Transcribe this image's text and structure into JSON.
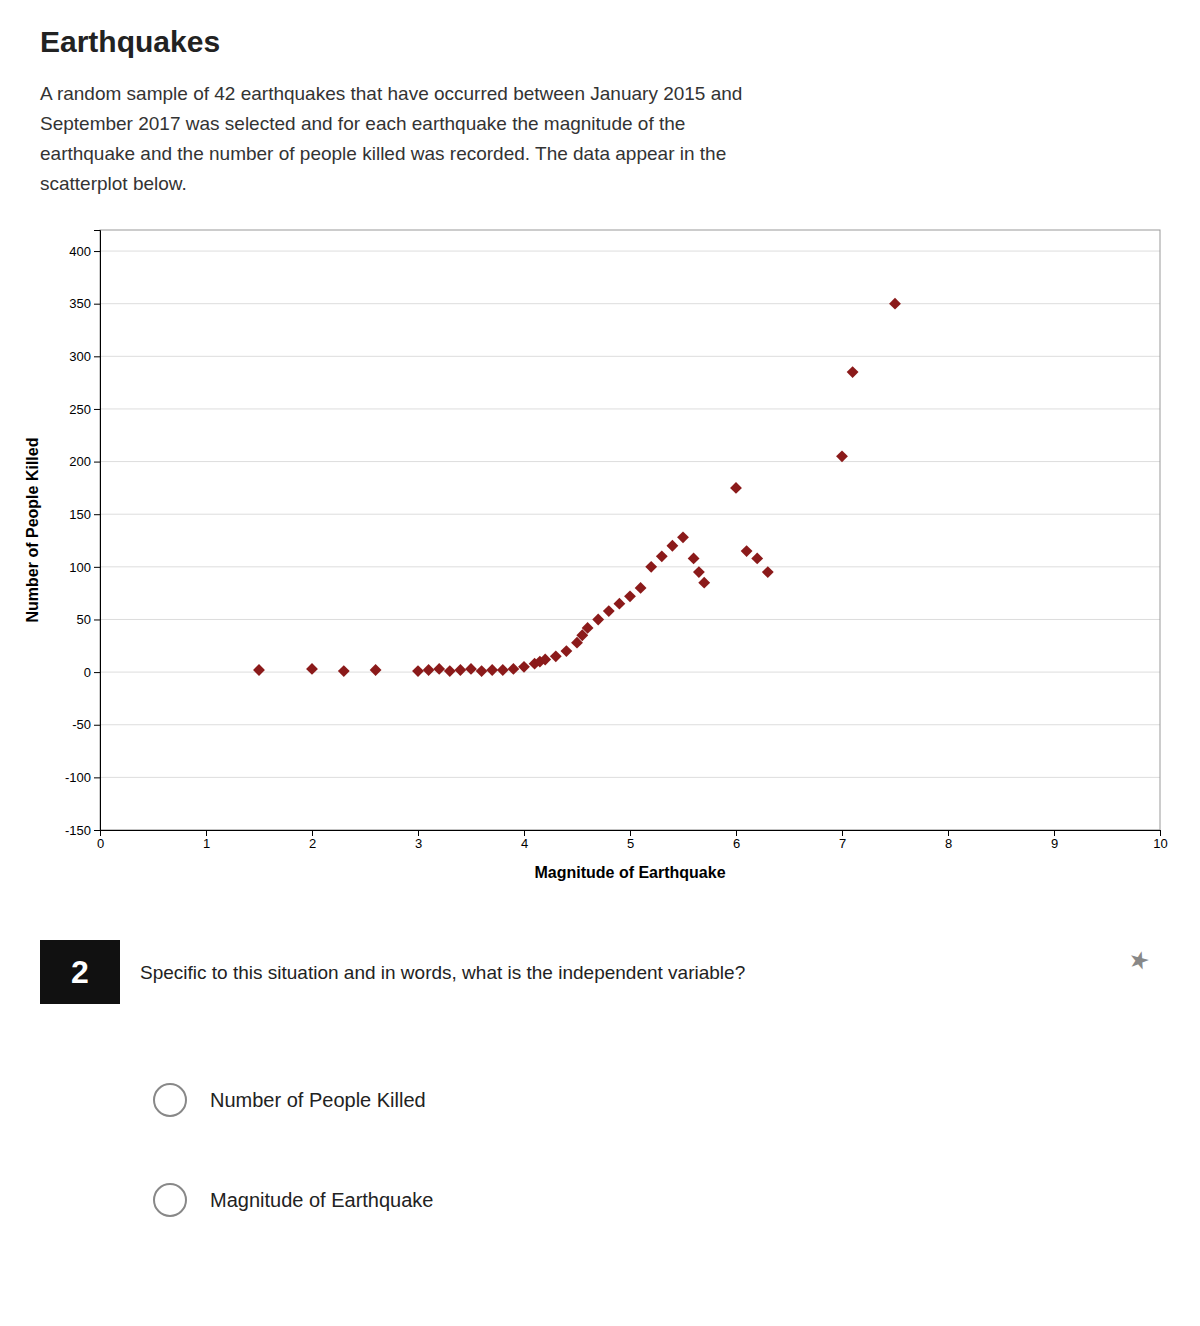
{
  "chart_data": {
    "type": "scatter",
    "title": "Earthquakes",
    "description": [
      "A random sample of 42 earthquakes that have occurred between January 2015 and",
      "September 2017 was selected and for each earthquake the magnitude of the",
      "earthquake and the number of people killed was recorded. The data appear in the",
      "scatterplot below."
    ],
    "x": [
      1.5,
      2.0,
      2.3,
      2.6,
      3.0,
      3.1,
      3.2,
      3.3,
      3.4,
      3.5,
      3.6,
      3.7,
      3.8,
      3.9,
      4.0,
      4.1,
      4.15,
      4.2,
      4.3,
      4.4,
      4.5,
      4.55,
      4.6,
      4.7,
      4.8,
      4.9,
      5.0,
      5.1,
      5.2,
      5.3,
      5.4,
      5.5,
      5.6,
      5.65,
      5.7,
      6.0,
      6.1,
      6.2,
      6.3,
      7.0,
      7.1,
      7.5
    ],
    "values": [
      2,
      3,
      1,
      2,
      1,
      2,
      3,
      1,
      2,
      3,
      1,
      2,
      2,
      3,
      5,
      8,
      10,
      12,
      15,
      20,
      28,
      35,
      42,
      50,
      58,
      65,
      72,
      80,
      100,
      110,
      120,
      128,
      108,
      95,
      85,
      175,
      115,
      108,
      95,
      205,
      285,
      350
    ],
    "color": "#8B1A1A",
    "marker": "diamond",
    "xlabel": "Magnitude of Earthquake",
    "ylabel": "Number of People Killed",
    "xlim": [
      0,
      10
    ],
    "ylim": [
      -150,
      420
    ],
    "xticks": [
      0,
      1,
      2,
      3,
      4,
      5,
      6,
      7,
      8,
      9,
      10
    ],
    "yticks": [
      -150,
      -100,
      -50,
      0,
      50,
      100,
      150,
      200,
      250,
      300,
      350,
      400
    ],
    "grid": "y",
    "question": {
      "number": "2",
      "text": "Specific to this situation and in words, what is the independent variable?",
      "options": [
        "Number of People Killed",
        "Magnitude of Earthquake"
      ],
      "icon": "★"
    }
  }
}
